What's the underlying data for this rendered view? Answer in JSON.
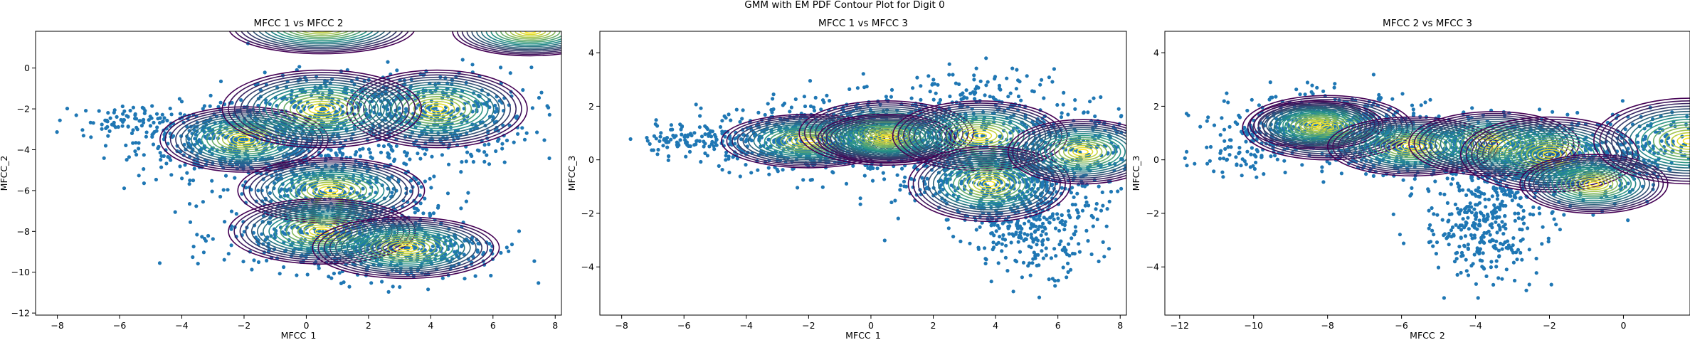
{
  "figure": {
    "suptitle": "GMM with EM PDF Contour Plot for Digit 0"
  },
  "colors": {
    "scatter": "#1f77b4",
    "contour_low": "#440154",
    "contour_mid": "#21918c",
    "contour_high": "#fde725"
  },
  "chart_data": [
    {
      "type": "scatter",
      "title": "MFCC 1 vs MFCC 2",
      "xlabel": "MFCC_1",
      "ylabel": "MFCC_2",
      "xlim": [
        -8.7,
        8.2
      ],
      "ylim": [
        -12.1,
        1.8
      ],
      "xticks": [
        -8,
        -6,
        -4,
        -2,
        0,
        2,
        4,
        6,
        8
      ],
      "yticks": [
        -12,
        -10,
        -8,
        -6,
        -4,
        -2,
        0
      ],
      "clusters": [
        {
          "center": [
            -2.0,
            -3.6
          ],
          "spread": [
            1.7,
            0.9
          ],
          "count": 500
        },
        {
          "center": [
            4.0,
            -2.4
          ],
          "spread": [
            1.6,
            1.2
          ],
          "count": 420
        },
        {
          "center": [
            0.8,
            -5.8
          ],
          "spread": [
            1.6,
            1.0
          ],
          "count": 350
        },
        {
          "center": [
            0.6,
            -8.2
          ],
          "spread": [
            1.6,
            0.9
          ],
          "count": 380
        },
        {
          "center": [
            3.5,
            -8.8
          ],
          "spread": [
            1.4,
            0.8
          ],
          "count": 300
        },
        {
          "center": [
            -5.5,
            -2.6
          ],
          "spread": [
            0.9,
            0.4
          ],
          "count": 90
        },
        {
          "center": [
            0.5,
            -2.0
          ],
          "spread": [
            1.2,
            0.9
          ],
          "count": 220
        }
      ],
      "components": [
        {
          "center": [
            -2.0,
            -3.5
          ],
          "spread": [
            2.7,
            1.6
          ]
        },
        {
          "center": [
            4.2,
            -2.0
          ],
          "spread": [
            2.9,
            1.9
          ]
        },
        {
          "center": [
            0.5,
            -2.0
          ],
          "spread": [
            3.2,
            1.9
          ]
        },
        {
          "center": [
            0.8,
            -6.0
          ],
          "spread": [
            3.0,
            1.6
          ]
        },
        {
          "center": [
            0.5,
            -8.0
          ],
          "spread": [
            3.0,
            1.6
          ]
        },
        {
          "center": [
            3.2,
            -8.8
          ],
          "spread": [
            3.0,
            1.5
          ]
        },
        {
          "center": [
            0.5,
            2.0
          ],
          "spread": [
            3.0,
            1.3
          ]
        },
        {
          "center": [
            7.2,
            1.8
          ],
          "spread": [
            2.5,
            1.2
          ]
        }
      ]
    },
    {
      "type": "scatter",
      "title": "MFCC 1 vs MFCC 3",
      "xlabel": "MFCC_1",
      "ylabel": "MFCC_3",
      "xlim": [
        -8.7,
        8.2
      ],
      "ylim": [
        -5.8,
        4.8
      ],
      "xticks": [
        -8,
        -6,
        -4,
        -2,
        0,
        2,
        4,
        6,
        8
      ],
      "yticks": [
        -4,
        -2,
        0,
        2,
        4
      ],
      "clusters": [
        {
          "center": [
            -2.5,
            0.8
          ],
          "spread": [
            1.5,
            0.6
          ],
          "count": 420
        },
        {
          "center": [
            0.5,
            0.9
          ],
          "spread": [
            1.8,
            0.7
          ],
          "count": 500
        },
        {
          "center": [
            3.8,
            -0.6
          ],
          "spread": [
            1.5,
            0.9
          ],
          "count": 420
        },
        {
          "center": [
            5.2,
            -2.2
          ],
          "spread": [
            1.0,
            1.0
          ],
          "count": 350
        },
        {
          "center": [
            6.5,
            0.4
          ],
          "spread": [
            1.2,
            0.9
          ],
          "count": 200
        },
        {
          "center": [
            -6.2,
            0.7
          ],
          "spread": [
            0.7,
            0.3
          ],
          "count": 80
        },
        {
          "center": [
            3.8,
            2.0
          ],
          "spread": [
            1.3,
            0.8
          ],
          "count": 150
        }
      ],
      "components": [
        {
          "center": [
            -2.0,
            0.7
          ],
          "spread": [
            2.8,
            1.0
          ]
        },
        {
          "center": [
            0.5,
            1.0
          ],
          "spread": [
            2.8,
            1.2
          ]
        },
        {
          "center": [
            0.5,
            0.8
          ],
          "spread": [
            2.2,
            0.9
          ]
        },
        {
          "center": [
            3.5,
            0.9
          ],
          "spread": [
            2.8,
            1.3
          ]
        },
        {
          "center": [
            3.8,
            -0.9
          ],
          "spread": [
            2.6,
            1.4
          ]
        },
        {
          "center": [
            6.8,
            0.3
          ],
          "spread": [
            2.4,
            1.2
          ]
        }
      ]
    },
    {
      "type": "scatter",
      "title": "MFCC 2 vs MFCC 3",
      "xlabel": "MFCC_2",
      "ylabel": "MFCC_3",
      "xlim": [
        -12.4,
        1.8
      ],
      "ylim": [
        -5.8,
        4.8
      ],
      "xticks": [
        -12,
        -10,
        -8,
        -6,
        -4,
        -2,
        0
      ],
      "yticks": [
        -4,
        -2,
        0,
        2,
        4
      ],
      "clusters": [
        {
          "center": [
            -8.2,
            1.2
          ],
          "spread": [
            1.2,
            0.6
          ],
          "count": 450
        },
        {
          "center": [
            -5.8,
            0.6
          ],
          "spread": [
            1.1,
            0.6
          ],
          "count": 330
        },
        {
          "center": [
            -3.0,
            0.3
          ],
          "spread": [
            1.2,
            0.6
          ],
          "count": 380
        },
        {
          "center": [
            -1.5,
            -0.3
          ],
          "spread": [
            1.1,
            0.7
          ],
          "count": 300
        },
        {
          "center": [
            -3.8,
            -2.4
          ],
          "spread": [
            0.8,
            1.0
          ],
          "count": 330
        },
        {
          "center": [
            -10.5,
            0.2
          ],
          "spread": [
            0.6,
            0.4
          ],
          "count": 60
        },
        {
          "center": [
            0.8,
            0.6
          ],
          "spread": [
            0.7,
            0.7
          ],
          "count": 120
        }
      ],
      "components": [
        {
          "center": [
            -8.0,
            1.2
          ],
          "spread": [
            2.3,
            1.2
          ]
        },
        {
          "center": [
            -8.3,
            1.3
          ],
          "spread": [
            1.8,
            0.9
          ]
        },
        {
          "center": [
            -5.7,
            0.5
          ],
          "spread": [
            2.3,
            1.1
          ]
        },
        {
          "center": [
            -3.5,
            0.6
          ],
          "spread": [
            2.3,
            1.2
          ]
        },
        {
          "center": [
            -2.0,
            0.2
          ],
          "spread": [
            2.4,
            1.4
          ]
        },
        {
          "center": [
            -0.8,
            -0.9
          ],
          "spread": [
            2.0,
            1.1
          ]
        },
        {
          "center": [
            1.8,
            0.7
          ],
          "spread": [
            2.6,
            1.6
          ]
        }
      ]
    }
  ]
}
